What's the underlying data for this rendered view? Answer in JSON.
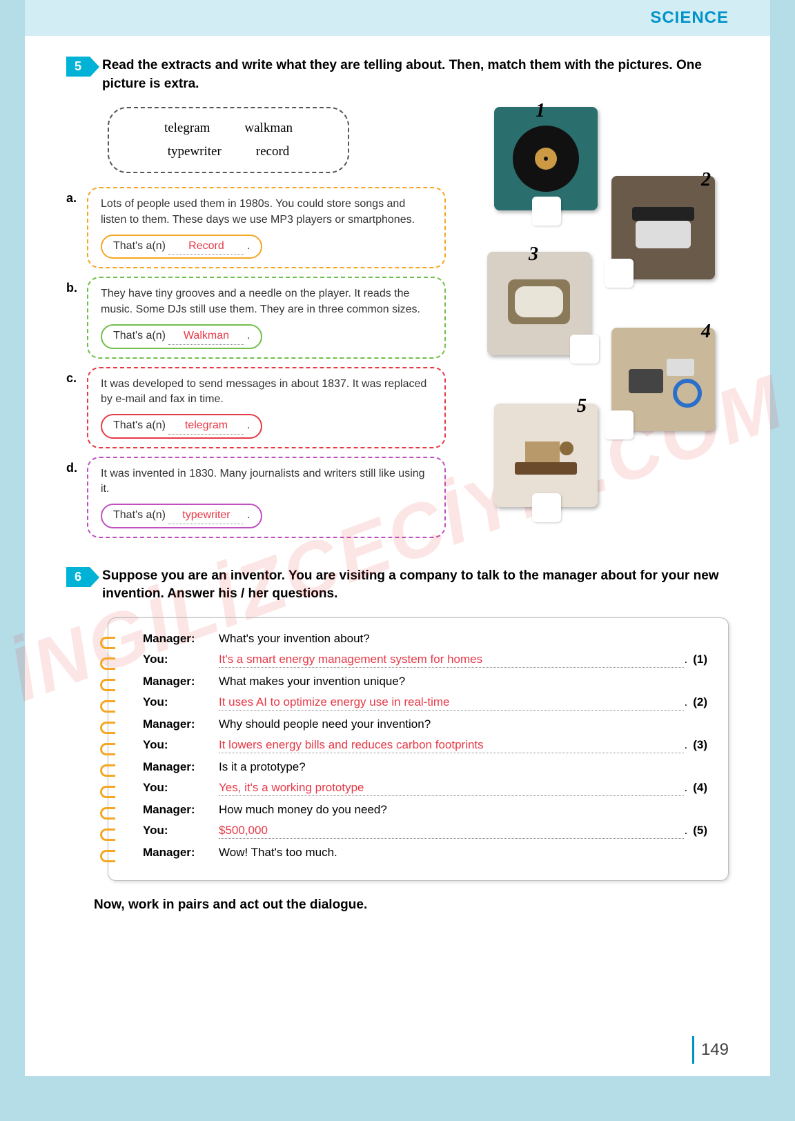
{
  "header": {
    "subject": "SCIENCE"
  },
  "watermark": "İNGİLİZCECİYİZ.COM",
  "page_number": "149",
  "ex5": {
    "num": "5",
    "instruction": "Read the extracts and write what they are telling about. Then, match them with the pictures. One picture is extra.",
    "word_bank": [
      "telegram",
      "walkman",
      "typewriter",
      "record"
    ],
    "extracts": [
      {
        "letter": "a.",
        "color": "orange",
        "text": "Lots of people used them in 1980s. You could store songs and listen to them. These days we use MP3 players or smartphones.",
        "prefix": "That's a(n)",
        "answer": "Record"
      },
      {
        "letter": "b.",
        "color": "green",
        "text": "They have tiny grooves and a needle on the player. It reads the music. Some DJs still use them. They are in three common sizes.",
        "prefix": "That's a(n)",
        "answer": "Walkman"
      },
      {
        "letter": "c.",
        "color": "red",
        "text": "It was developed to send messages in about 1837. It was replaced by e-mail and fax in time.",
        "prefix": "That's a(n)",
        "answer": "telegram"
      },
      {
        "letter": "d.",
        "color": "purple",
        "text": "It was invented in 1830. Many journalists and writers still like using it.",
        "prefix": "That's a(n)",
        "answer": "typewriter"
      }
    ],
    "pictures": [
      {
        "num": "1",
        "bg": "#2a6f6e",
        "alt": "record player"
      },
      {
        "num": "2",
        "bg": "#8a7a6a",
        "alt": "typewriter"
      },
      {
        "num": "3",
        "bg": "#d8d0c4",
        "alt": "old tv"
      },
      {
        "num": "4",
        "bg": "#c9b89a",
        "alt": "walkman cassette"
      },
      {
        "num": "5",
        "bg": "#9a8a6a",
        "alt": "telegraph"
      }
    ]
  },
  "ex6": {
    "num": "6",
    "instruction": "Suppose you are an inventor. You are visiting a company to talk to the manager about for your new invention. Answer his / her questions.",
    "rows": [
      {
        "speaker": "Manager:",
        "type": "q",
        "text": "What's your invention about?"
      },
      {
        "speaker": "You:",
        "type": "a",
        "text": "It's a smart energy management system for homes",
        "num": "(1)"
      },
      {
        "speaker": "Manager:",
        "type": "q",
        "text": "What makes your invention unique?"
      },
      {
        "speaker": "You:",
        "type": "a",
        "text": "It uses AI to optimize energy use in real-time",
        "num": "(2)"
      },
      {
        "speaker": "Manager:",
        "type": "q",
        "text": "Why should people need your invention?"
      },
      {
        "speaker": "You:",
        "type": "a",
        "text": "It lowers energy bills and reduces carbon footprints",
        "num": "(3)"
      },
      {
        "speaker": "Manager:",
        "type": "q",
        "text": "Is it a prototype?"
      },
      {
        "speaker": "You:",
        "type": "a",
        "text": "Yes, it's a working prototype",
        "num": "(4)"
      },
      {
        "speaker": "Manager:",
        "type": "q",
        "text": "How much money do you need?"
      },
      {
        "speaker": "You:",
        "type": "a",
        "text": "$500,000",
        "num": "(5)"
      },
      {
        "speaker": "Manager:",
        "type": "q",
        "text": "Wow! That's too much."
      }
    ],
    "footer": "Now, work in pairs and act out the dialogue."
  }
}
